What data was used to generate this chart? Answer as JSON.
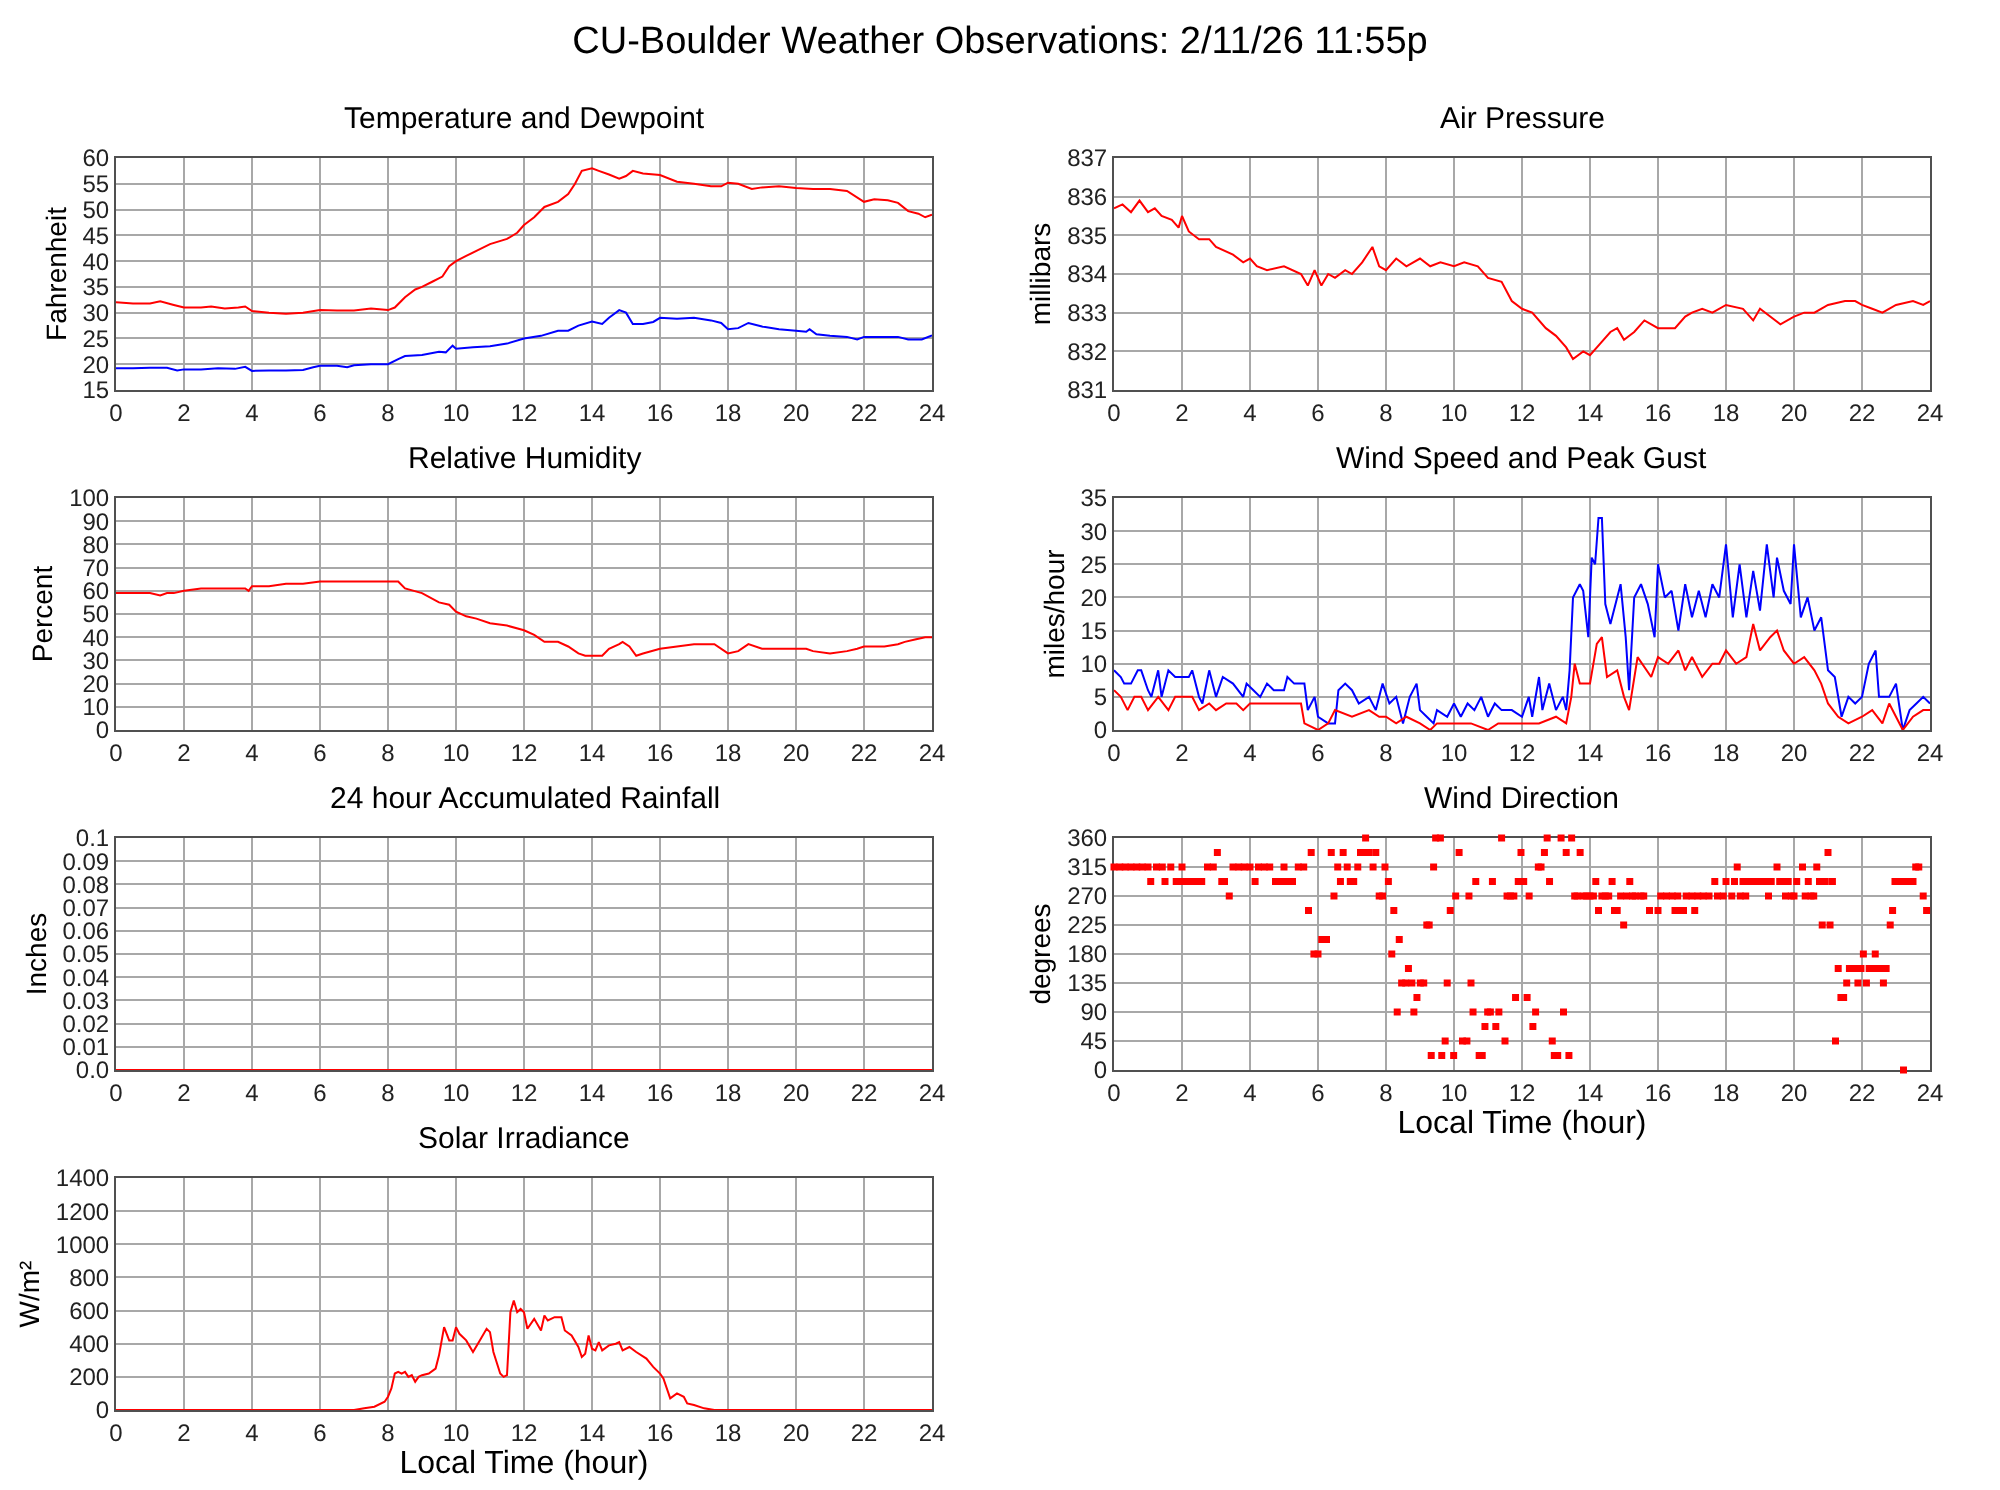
{
  "chart_data": [
    {
      "type": "other",
      "title": "CU-Boulder Weather Observations: 2/11/26 11:55p"
    },
    {
      "type": "line",
      "title": "Temperature and Dewpoint",
      "ylabel": "Fahrenheit",
      "xlim": [
        0,
        24
      ],
      "xticks": [
        0,
        2,
        4,
        6,
        8,
        10,
        12,
        14,
        16,
        18,
        20,
        22,
        24
      ],
      "ylim": [
        15,
        60
      ],
      "yticks": [
        15,
        20,
        25,
        30,
        35,
        40,
        45,
        50,
        55,
        60
      ],
      "grid": true,
      "series": [
        {
          "color": "#ff0000",
          "x": [
            0,
            0.5,
            1,
            1.3,
            1.7,
            2,
            2.5,
            2.8,
            3.2,
            3.6,
            3.8,
            4,
            4.5,
            5,
            5.5,
            6,
            6.5,
            7,
            7.5,
            8,
            8.2,
            8.5,
            8.8,
            9,
            9.3,
            9.6,
            9.8,
            10,
            10.3,
            10.6,
            11,
            11.5,
            11.8,
            12,
            12.3,
            12.6,
            13,
            13.3,
            13.5,
            13.7,
            14,
            14.2,
            14.5,
            14.8,
            15,
            15.2,
            15.5,
            16,
            16.5,
            17,
            17.5,
            17.8,
            18,
            18.3,
            18.7,
            19,
            19.5,
            20,
            20.5,
            21,
            21.5,
            22,
            22.3,
            22.7,
            23,
            23.3,
            23.6,
            23.8,
            24
          ],
          "values": [
            32,
            31.8,
            31.8,
            32.2,
            31.5,
            31,
            31,
            31.2,
            30.8,
            31,
            31.2,
            30.3,
            30,
            29.8,
            30,
            30.5,
            30.4,
            30.4,
            30.8,
            30.5,
            31,
            33,
            34.5,
            35,
            36,
            37,
            39,
            40,
            41,
            42,
            43.3,
            44.3,
            45.5,
            47,
            48.5,
            50.5,
            51.5,
            53,
            55,
            57.5,
            58,
            57.5,
            56.8,
            56,
            56.5,
            57.5,
            57,
            56.7,
            55.4,
            55,
            54.5,
            54.5,
            55.2,
            55,
            54,
            54.3,
            54.5,
            54.2,
            54,
            54,
            53.6,
            51.5,
            52,
            51.8,
            51.3,
            49.7,
            49.2,
            48.5,
            49
          ]
        },
        {
          "color": "#0000ff",
          "x": [
            0,
            0.5,
            1,
            1.5,
            1.8,
            2,
            2.5,
            3,
            3.5,
            3.8,
            4,
            4.5,
            5,
            5.5,
            5.8,
            6,
            6.5,
            6.8,
            7,
            7.5,
            8,
            8.3,
            8.5,
            9,
            9.5,
            9.7,
            9.9,
            10,
            10.5,
            11,
            11.5,
            12,
            12.5,
            13,
            13.3,
            13.6,
            14,
            14.3,
            14.5,
            14.8,
            15,
            15.2,
            15.5,
            15.8,
            16,
            16.5,
            17,
            17.5,
            17.8,
            18,
            18.3,
            18.6,
            19,
            19.5,
            20,
            20.3,
            20.4,
            20.6,
            21,
            21.5,
            21.8,
            22,
            22.5,
            23,
            23.3,
            23.7,
            24
          ],
          "values": [
            19.2,
            19.2,
            19.3,
            19.3,
            18.8,
            19,
            19,
            19.2,
            19.1,
            19.5,
            18.7,
            18.8,
            18.8,
            18.9,
            19.4,
            19.7,
            19.7,
            19.4,
            19.8,
            20,
            20,
            21,
            21.6,
            21.8,
            22.4,
            22.3,
            23.6,
            23,
            23.3,
            23.5,
            24,
            25,
            25.5,
            26.5,
            26.5,
            27.5,
            28.3,
            27.8,
            29,
            30.5,
            30,
            27.8,
            27.8,
            28.2,
            29,
            28.8,
            29,
            28.5,
            28,
            26.8,
            27,
            28,
            27.3,
            26.8,
            26.5,
            26.3,
            26.8,
            25.8,
            25.5,
            25.3,
            24.8,
            25.3,
            25.3,
            25.3,
            24.8,
            24.8,
            25.6
          ]
        }
      ]
    },
    {
      "type": "line",
      "title": "Air Pressure",
      "ylabel": "millibars",
      "xlim": [
        0,
        24
      ],
      "xticks": [
        0,
        2,
        4,
        6,
        8,
        10,
        12,
        14,
        16,
        18,
        20,
        22,
        24
      ],
      "ylim": [
        831,
        837
      ],
      "yticks": [
        831,
        832,
        833,
        834,
        835,
        836,
        837
      ],
      "grid": true,
      "series": [
        {
          "color": "#ff0000",
          "x": [
            0,
            0.25,
            0.5,
            0.75,
            1,
            1.2,
            1.4,
            1.7,
            1.9,
            2,
            2.2,
            2.5,
            2.8,
            3,
            3.5,
            3.8,
            4,
            4.2,
            4.5,
            5,
            5.5,
            5.7,
            5.9,
            6.1,
            6.3,
            6.5,
            6.8,
            7,
            7.3,
            7.6,
            7.8,
            8,
            8.3,
            8.6,
            9,
            9.3,
            9.6,
            10,
            10.3,
            10.7,
            11,
            11.4,
            11.7,
            12,
            12.3,
            12.7,
            13,
            13.3,
            13.5,
            13.8,
            14,
            14.3,
            14.6,
            14.8,
            15,
            15.3,
            15.6,
            16,
            16.5,
            16.8,
            17,
            17.3,
            17.6,
            18,
            18.5,
            18.8,
            19,
            19.3,
            19.6,
            20,
            20.3,
            20.6,
            21,
            21.5,
            21.8,
            22,
            22.3,
            22.6,
            23,
            23.5,
            23.8,
            24
          ],
          "values": [
            835.7,
            835.8,
            835.6,
            835.9,
            835.6,
            835.7,
            835.5,
            835.4,
            835.2,
            835.5,
            835.1,
            834.9,
            834.9,
            834.7,
            834.5,
            834.3,
            834.4,
            834.2,
            834.1,
            834.2,
            834,
            833.7,
            834.1,
            833.7,
            834,
            833.9,
            834.1,
            834,
            834.3,
            834.7,
            834.2,
            834.1,
            834.4,
            834.2,
            834.4,
            834.2,
            834.3,
            834.2,
            834.3,
            834.2,
            833.9,
            833.8,
            833.3,
            833.1,
            833,
            832.6,
            832.4,
            832.1,
            831.8,
            832,
            831.9,
            832.2,
            832.5,
            832.6,
            832.3,
            832.5,
            832.8,
            832.6,
            832.6,
            832.9,
            833,
            833.1,
            833,
            833.2,
            833.1,
            832.8,
            833.1,
            832.9,
            832.7,
            832.9,
            833,
            833,
            833.2,
            833.3,
            833.3,
            833.2,
            833.1,
            833,
            833.2,
            833.3,
            833.2,
            833.3
          ]
        }
      ]
    },
    {
      "type": "line",
      "title": "Relative Humidity",
      "ylabel": "Percent",
      "xlim": [
        0,
        24
      ],
      "xticks": [
        0,
        2,
        4,
        6,
        8,
        10,
        12,
        14,
        16,
        18,
        20,
        22,
        24
      ],
      "ylim": [
        0,
        100
      ],
      "yticks": [
        0,
        10,
        20,
        30,
        40,
        50,
        60,
        70,
        80,
        90,
        100
      ],
      "grid": true,
      "series": [
        {
          "color": "#ff0000",
          "x": [
            0,
            0.5,
            1,
            1.3,
            1.5,
            1.7,
            2,
            2.5,
            3,
            3.5,
            3.8,
            3.9,
            4,
            4.5,
            5,
            5.5,
            6,
            6.5,
            7,
            7.5,
            8,
            8.3,
            8.5,
            9,
            9.5,
            9.8,
            10,
            10.3,
            10.6,
            11,
            11.5,
            12,
            12.3,
            12.6,
            13,
            13.3,
            13.6,
            13.8,
            14,
            14.3,
            14.5,
            14.8,
            14.9,
            15.1,
            15.3,
            15.5,
            16,
            16.5,
            17,
            17.6,
            18,
            18.3,
            18.6,
            19,
            19.5,
            20,
            20.3,
            20.5,
            21,
            21.5,
            21.8,
            22,
            22.3,
            22.6,
            23,
            23.2,
            23.5,
            23.8,
            24
          ],
          "values": [
            59,
            59,
            59,
            58,
            59,
            59,
            60,
            61,
            61,
            61,
            61,
            60,
            62,
            62,
            63,
            63,
            64,
            64,
            64,
            64,
            64,
            64,
            61,
            59,
            55,
            54,
            51,
            49,
            48,
            46,
            45,
            43,
            41,
            38,
            38,
            36,
            33,
            32,
            32,
            32,
            35,
            37,
            38,
            36,
            32,
            33,
            35,
            36,
            37,
            37,
            33,
            34,
            37,
            35,
            35,
            35,
            35,
            34,
            33,
            34,
            35,
            36,
            36,
            36,
            37,
            38,
            39,
            40,
            40
          ]
        }
      ]
    },
    {
      "type": "line",
      "title": "Wind Speed and Peak Gust",
      "ylabel": "miles/hour",
      "xlim": [
        0,
        24
      ],
      "xticks": [
        0,
        2,
        4,
        6,
        8,
        10,
        12,
        14,
        16,
        18,
        20,
        22,
        24
      ],
      "ylim": [
        0,
        35
      ],
      "yticks": [
        0,
        5,
        10,
        15,
        20,
        25,
        30,
        35
      ],
      "grid": true,
      "series": [
        {
          "color": "#0000ff",
          "x": [
            0,
            0.2,
            0.3,
            0.5,
            0.7,
            0.8,
            1,
            1.1,
            1.3,
            1.4,
            1.6,
            1.8,
            2,
            2.2,
            2.3,
            2.5,
            2.6,
            2.8,
            3,
            3.2,
            3.5,
            3.8,
            3.9,
            4.1,
            4.3,
            4.5,
            4.7,
            5,
            5.1,
            5.3,
            5.6,
            5.7,
            5.9,
            6,
            6.3,
            6.5,
            6.6,
            6.8,
            7,
            7.2,
            7.5,
            7.7,
            7.9,
            8.1,
            8.3,
            8.5,
            8.7,
            8.9,
            9,
            9.2,
            9.4,
            9.5,
            9.8,
            10,
            10.2,
            10.4,
            10.6,
            10.8,
            11,
            11.2,
            11.4,
            11.7,
            12,
            12.2,
            12.3,
            12.5,
            12.6,
            12.8,
            13,
            13.2,
            13.3,
            13.4,
            13.5,
            13.7,
            13.8,
            13.95,
            14.05,
            14.15,
            14.25,
            14.35,
            14.45,
            14.6,
            14.9,
            15.05,
            15.15,
            15.3,
            15.5,
            15.7,
            15.9,
            16,
            16.2,
            16.4,
            16.6,
            16.8,
            17,
            17.2,
            17.4,
            17.6,
            17.8,
            18,
            18.2,
            18.4,
            18.6,
            18.8,
            19,
            19.2,
            19.4,
            19.5,
            19.7,
            19.9,
            20,
            20.2,
            20.4,
            20.6,
            20.8,
            21,
            21.2,
            21.4,
            21.6,
            21.8,
            22,
            22.2,
            22.4,
            22.5,
            22.8,
            23,
            23.2,
            23.4,
            23.6,
            23.8,
            24
          ],
          "values": [
            9,
            8,
            7,
            7,
            9,
            9,
            6,
            5,
            9,
            5,
            9,
            8,
            8,
            8,
            9,
            5,
            4,
            9,
            5,
            8,
            7,
            5,
            7,
            6,
            5,
            7,
            6,
            6,
            8,
            7,
            7,
            3,
            5,
            2,
            1,
            1,
            6,
            7,
            6,
            4,
            5,
            3,
            7,
            4,
            5,
            1,
            5,
            7,
            3,
            2,
            1,
            3,
            2,
            4,
            2,
            4,
            3,
            5,
            2,
            4,
            3,
            3,
            2,
            5,
            2,
            8,
            3,
            7,
            3,
            5,
            3,
            9,
            20,
            22,
            21,
            14,
            26,
            25,
            32,
            32,
            19,
            16,
            22,
            14,
            6,
            20,
            22,
            19,
            14,
            25,
            20,
            21,
            15,
            22,
            17,
            21,
            17,
            22,
            20,
            28,
            17,
            25,
            17,
            24,
            18,
            28,
            20,
            26,
            21,
            19,
            28,
            17,
            20,
            15,
            17,
            9,
            8,
            2,
            5,
            4,
            5,
            10,
            12,
            5,
            5,
            7,
            0,
            3,
            4,
            5,
            4
          ]
        },
        {
          "color": "#ff0000",
          "x": [
            0,
            0.2,
            0.4,
            0.6,
            0.8,
            1,
            1.3,
            1.6,
            1.8,
            2,
            2.3,
            2.5,
            2.8,
            3,
            3.3,
            3.6,
            3.8,
            4,
            4.5,
            5,
            5.5,
            5.6,
            6,
            6.3,
            6.5,
            7,
            7.5,
            7.8,
            8,
            8.3,
            8.6,
            9,
            9.3,
            9.5,
            10,
            10.5,
            11,
            11.3,
            12,
            12.5,
            13,
            13.3,
            13.45,
            13.55,
            13.7,
            14,
            14.2,
            14.35,
            14.5,
            14.8,
            15,
            15.15,
            15.4,
            15.8,
            16,
            16.3,
            16.6,
            16.8,
            17,
            17.3,
            17.6,
            17.8,
            18,
            18.3,
            18.6,
            18.8,
            19,
            19.3,
            19.5,
            19.7,
            20,
            20.3,
            20.6,
            20.8,
            21,
            21.3,
            21.6,
            22,
            22.3,
            22.6,
            22.8,
            23,
            23.2,
            23.5,
            23.8,
            24
          ],
          "values": [
            6,
            5,
            3,
            5,
            5,
            3,
            5,
            3,
            5,
            5,
            5,
            3,
            4,
            3,
            4,
            4,
            3,
            4,
            4,
            4,
            4,
            1,
            0,
            1,
            3,
            2,
            3,
            2,
            2,
            1,
            2,
            1,
            0,
            1,
            1,
            1,
            0,
            1,
            1,
            1,
            2,
            1,
            5,
            10,
            7,
            7,
            13,
            14,
            8,
            9,
            5,
            3,
            11,
            8,
            11,
            10,
            12,
            9,
            11,
            8,
            10,
            10,
            12,
            10,
            11,
            16,
            12,
            14,
            15,
            12,
            10,
            11,
            9,
            7,
            4,
            2,
            1,
            2,
            3,
            1,
            4,
            2,
            0,
            2,
            3,
            3
          ]
        }
      ]
    },
    {
      "type": "line",
      "title": "24 hour Accumulated Rainfall",
      "ylabel": "Inches",
      "xlim": [
        0,
        24
      ],
      "xticks": [
        0,
        2,
        4,
        6,
        8,
        10,
        12,
        14,
        16,
        18,
        20,
        22,
        24
      ],
      "ylim": [
        0,
        0.1
      ],
      "yticks": [
        {
          "value": 0,
          "label": "0.0"
        },
        0.01,
        0.02,
        0.03,
        0.04,
        0.05,
        0.06,
        0.07,
        0.08,
        0.09,
        0.1
      ],
      "grid": true,
      "series": [
        {
          "color": "#ff0000",
          "x": [
            0,
            24
          ],
          "values": [
            0,
            0
          ]
        }
      ]
    },
    {
      "type": "scatter",
      "title": "Wind Direction",
      "ylabel": "degrees",
      "xlabel": "Local Time (hour)",
      "xlim": [
        0,
        24
      ],
      "xticks": [
        0,
        2,
        4,
        6,
        8,
        10,
        12,
        14,
        16,
        18,
        20,
        22,
        24
      ],
      "ylim": [
        0,
        360
      ],
      "yticks": [
        0,
        45,
        90,
        135,
        180,
        225,
        270,
        315,
        360
      ],
      "grid": true,
      "marker": "square",
      "series": [
        {
          "color": "#ff0000",
          "x": [
            0,
            0.17,
            0.33,
            0.5,
            0.67,
            0.83,
            1.0,
            1.08,
            1.25,
            1.42,
            1.5,
            1.67,
            1.83,
            1.92,
            2.0,
            2.08,
            2.25,
            2.42,
            2.58,
            2.75,
            2.92,
            3.04,
            3.17,
            3.25,
            3.39,
            3.5,
            3.67,
            3.83,
            4.0,
            4.15,
            4.25,
            4.42,
            4.58,
            4.75,
            4.92,
            5.0,
            5.08,
            5.25,
            5.42,
            5.58,
            5.72,
            5.8,
            5.88,
            6.0,
            6.11,
            6.25,
            6.39,
            6.47,
            6.58,
            6.66,
            6.74,
            6.86,
            6.95,
            7.05,
            7.17,
            7.25,
            7.33,
            7.4,
            7.5,
            7.62,
            7.7,
            7.8,
            7.9,
            7.97,
            8.07,
            8.17,
            8.23,
            8.33,
            8.39,
            8.46,
            8.58,
            8.66,
            8.76,
            8.82,
            8.91,
            9.01,
            9.11,
            9.2,
            9.27,
            9.33,
            9.4,
            9.46,
            9.6,
            9.64,
            9.74,
            9.8,
            9.89,
            9.99,
            10.05,
            10.15,
            10.25,
            10.38,
            10.44,
            10.5,
            10.56,
            10.64,
            10.74,
            10.83,
            10.91,
            10.99,
            11.07,
            11.13,
            11.23,
            11.32,
            11.4,
            11.5,
            11.56,
            11.66,
            11.76,
            11.81,
            11.89,
            11.97,
            12.05,
            12.15,
            12.21,
            12.32,
            12.4,
            12.48,
            12.56,
            12.66,
            12.74,
            12.81,
            12.89,
            12.95,
            13.05,
            13.15,
            13.22,
            13.3,
            13.38,
            13.46,
            13.55,
            13.62,
            13.71,
            13.8,
            13.9,
            14.0,
            14.1,
            14.17,
            14.25,
            14.35,
            14.45,
            14.55,
            14.65,
            14.72,
            14.8,
            14.9,
            14.99,
            15.08,
            15.17,
            15.25,
            15.33,
            15.5,
            15.58,
            15.75,
            16.0,
            16.08,
            16.25,
            16.42,
            16.5,
            16.58,
            16.67,
            16.75,
            16.83,
            17.0,
            17.08,
            17.17,
            17.33,
            17.5,
            17.67,
            17.75,
            17.92,
            18.0,
            18.17,
            18.25,
            18.33,
            18.42,
            18.5,
            18.58,
            18.67,
            18.83,
            19.0,
            19.17,
            19.25,
            19.33,
            19.5,
            19.58,
            19.67,
            19.75,
            19.83,
            19.92,
            20.0,
            20.08,
            20.25,
            20.33,
            20.42,
            20.5,
            20.58,
            20.67,
            20.75,
            20.83,
            20.92,
            21.0,
            21.06,
            21.13,
            21.22,
            21.3,
            21.38,
            21.46,
            21.55,
            21.63,
            21.8,
            21.88,
            21.97,
            22.04,
            22.13,
            22.21,
            22.3,
            22.39,
            22.46,
            22.55,
            22.63,
            22.71,
            22.83,
            22.9,
            22.97,
            23.13,
            23.22,
            23.3,
            23.38,
            23.5,
            23.58,
            23.67,
            23.8,
            23.9
          ],
          "values": [
            315,
            315,
            315,
            315,
            315,
            315,
            315,
            292.5,
            315,
            315,
            292.5,
            315,
            292.5,
            292.5,
            315,
            292.5,
            292.5,
            292.5,
            292.5,
            315,
            315,
            337.5,
            292.5,
            292.5,
            270,
            315,
            315,
            315,
            315,
            292.5,
            315,
            315,
            315,
            292.5,
            292.5,
            315,
            292.5,
            292.5,
            315,
            315,
            247.5,
            337.5,
            180,
            180,
            202.5,
            202.5,
            337.5,
            270,
            315,
            292.5,
            337.5,
            315,
            292.5,
            292.5,
            315,
            337.5,
            337.5,
            360,
            337.5,
            315,
            337.5,
            270,
            270,
            315,
            292.5,
            180,
            247.5,
            90,
            202.5,
            135,
            135,
            157.5,
            135,
            90,
            112.5,
            135,
            135,
            225,
            225,
            22.5,
            315,
            360,
            360,
            22.5,
            45,
            135,
            247.5,
            22.5,
            270,
            337.5,
            45,
            45,
            270,
            135,
            90,
            292.5,
            22.5,
            22.5,
            67.5,
            90,
            90,
            292.5,
            67.5,
            90,
            360,
            45,
            270,
            270,
            270,
            112.5,
            292.5,
            337.5,
            292.5,
            112.5,
            270,
            67.5,
            90,
            315,
            315,
            337.5,
            360,
            292.5,
            45,
            22.5,
            22.5,
            360,
            90,
            337.5,
            22.5,
            360,
            270,
            270,
            337.5,
            270,
            270,
            270,
            270,
            292.5,
            247.5,
            270,
            270,
            270,
            292.5,
            247.5,
            247.5,
            270,
            225,
            270,
            292.5,
            270,
            270,
            270,
            270,
            247.5,
            247.5,
            270,
            270,
            270,
            247.5,
            270,
            247.5,
            247.5,
            270,
            270,
            247.5,
            270,
            270,
            270,
            292.5,
            270,
            270,
            292.5,
            270,
            292.5,
            315,
            270,
            292.5,
            270,
            292.5,
            292.5,
            292.5,
            292.5,
            270,
            292.5,
            315,
            292.5,
            292.5,
            270,
            292.5,
            270,
            270,
            292.5,
            315,
            270,
            292.5,
            270,
            270,
            315,
            292.5,
            225,
            292.5,
            337.5,
            225,
            292.5,
            45,
            157.5,
            112.5,
            112.5,
            135,
            157.5,
            157.5,
            135,
            157.5,
            180,
            135,
            157.5,
            157.5,
            180,
            157.5,
            157.5,
            135,
            157.5,
            225,
            247.5,
            292.5,
            292.5,
            0,
            292.5,
            292.5,
            292.5,
            315,
            315,
            270,
            247.5
          ]
        }
      ]
    },
    {
      "type": "line",
      "title": "Solar Irradiance",
      "ylabel": "W/m²",
      "xlabel": "Local Time (hour)",
      "xlim": [
        0,
        24
      ],
      "xticks": [
        0,
        2,
        4,
        6,
        8,
        10,
        12,
        14,
        16,
        18,
        20,
        22,
        24
      ],
      "ylim": [
        0,
        1400
      ],
      "yticks": [
        0,
        200,
        400,
        600,
        800,
        1000,
        1200,
        1400
      ],
      "grid": true,
      "series": [
        {
          "color": "#ff0000",
          "x": [
            0,
            6.5,
            7,
            7.3,
            7.6,
            7.9,
            8,
            8.1,
            8.2,
            8.3,
            8.4,
            8.5,
            8.6,
            8.7,
            8.8,
            8.9,
            9,
            9.2,
            9.4,
            9.5,
            9.65,
            9.8,
            9.9,
            10,
            10.1,
            10.3,
            10.5,
            10.7,
            10.9,
            11,
            11.1,
            11.3,
            11.4,
            11.5,
            11.6,
            11.7,
            11.8,
            11.9,
            12,
            12.1,
            12.3,
            12.5,
            12.6,
            12.7,
            12.9,
            13.1,
            13.2,
            13.4,
            13.6,
            13.7,
            13.8,
            13.9,
            14,
            14.1,
            14.2,
            14.3,
            14.5,
            14.7,
            14.8,
            14.9,
            15.1,
            15.3,
            15.6,
            15.8,
            16,
            16.1,
            16.3,
            16.5,
            16.7,
            16.8,
            17,
            17.3,
            17.6,
            17.8,
            24
          ],
          "values": [
            0,
            0,
            0,
            10,
            20,
            50,
            80,
            130,
            220,
            230,
            220,
            230,
            200,
            210,
            170,
            200,
            210,
            220,
            250,
            330,
            500,
            420,
            420,
            500,
            460,
            420,
            350,
            420,
            490,
            470,
            350,
            220,
            200,
            210,
            590,
            660,
            590,
            610,
            590,
            490,
            550,
            480,
            570,
            540,
            560,
            560,
            480,
            450,
            380,
            320,
            340,
            450,
            370,
            360,
            410,
            360,
            390,
            400,
            410,
            360,
            380,
            350,
            310,
            260,
            220,
            190,
            70,
            100,
            80,
            40,
            30,
            10,
            0,
            0,
            0
          ]
        }
      ]
    }
  ]
}
